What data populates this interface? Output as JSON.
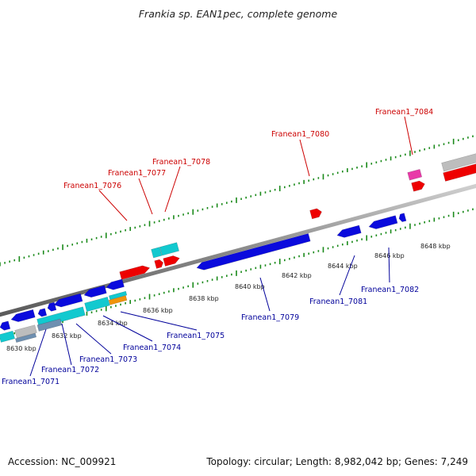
{
  "title": "Frankia sp. EAN1pec, complete genome",
  "footer": {
    "accession": "Accession: NC_009921",
    "summary": "Topology: circular; Length: 8,982,042 bp; Genes: 7,249"
  },
  "colors": {
    "forward_label": "#cc0000",
    "reverse_label": "#00009a",
    "backbone": "#8c8c8c",
    "tick": "#1a8a1a",
    "gene_red": "#ee0000",
    "gene_blue": "#0a0add",
    "gene_cyan": "#12c9cf",
    "gene_gray": "#bdbdbd",
    "gene_pink": "#e83aa8",
    "gene_orange": "#f0940a",
    "gene_steel": "#6e8fb0"
  },
  "scale_labels": [
    "8630 kbp",
    "8632 kbp",
    "8634 kbp",
    "8636 kbp",
    "8638 kbp",
    "8640 kbp",
    "8642 kbp",
    "8644 kbp",
    "8646 kbp",
    "8648 kbp"
  ],
  "top_labels": [
    "Franean1_7076",
    "Franean1_7077",
    "Franean1_7078",
    "Franean1_7080",
    "Franean1_7084"
  ],
  "bottom_labels": [
    "Franean1_7071",
    "Franean1_7072",
    "Franean1_7073",
    "Franean1_7074",
    "Franean1_7075",
    "Franean1_7079",
    "Franean1_7081",
    "Franean1_7082"
  ]
}
